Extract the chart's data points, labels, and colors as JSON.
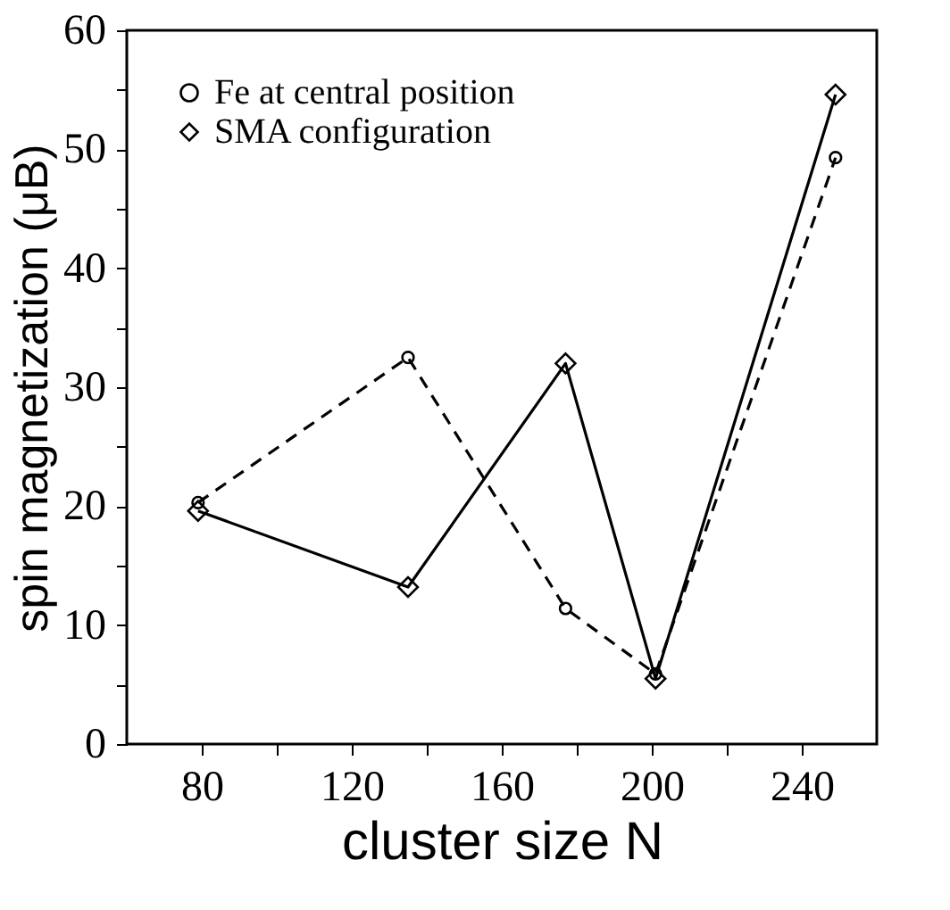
{
  "chart_data": {
    "type": "line",
    "xlabel": "cluster size  N",
    "ylabel": "spin magnetization  (μB)",
    "x": [
      79,
      135,
      177,
      201,
      249
    ],
    "series": [
      {
        "name": "Fe at central position",
        "color": "#000000",
        "values": [
          20.3,
          32.5,
          11.4,
          5.9,
          49.3
        ],
        "marker": "circle",
        "line_style": "dashed"
      },
      {
        "name": "SMA configuration",
        "color": "#000000",
        "values": [
          19.6,
          13.2,
          32.0,
          5.5,
          54.6
        ],
        "marker": "diamond",
        "line_style": "solid"
      }
    ],
    "xlim": [
      60,
      260
    ],
    "xticks": [
      80,
      {
        "value": 100,
        "label": null
      },
      120,
      {
        "value": 140,
        "label": null
      },
      160,
      {
        "value": 180,
        "label": null
      },
      200,
      {
        "value": 220,
        "label": null
      },
      240
    ],
    "ylim": [
      0,
      60
    ],
    "yticks": [
      0,
      {
        "value": 5,
        "label": null
      },
      10,
      {
        "value": 15,
        "label": null
      },
      20,
      {
        "value": 25,
        "label": null
      },
      30,
      {
        "value": 35,
        "label": null
      },
      40,
      {
        "value": 45,
        "label": null
      },
      50,
      {
        "value": 55,
        "label": null
      },
      60
    ],
    "grid": false,
    "legend": "top left"
  }
}
